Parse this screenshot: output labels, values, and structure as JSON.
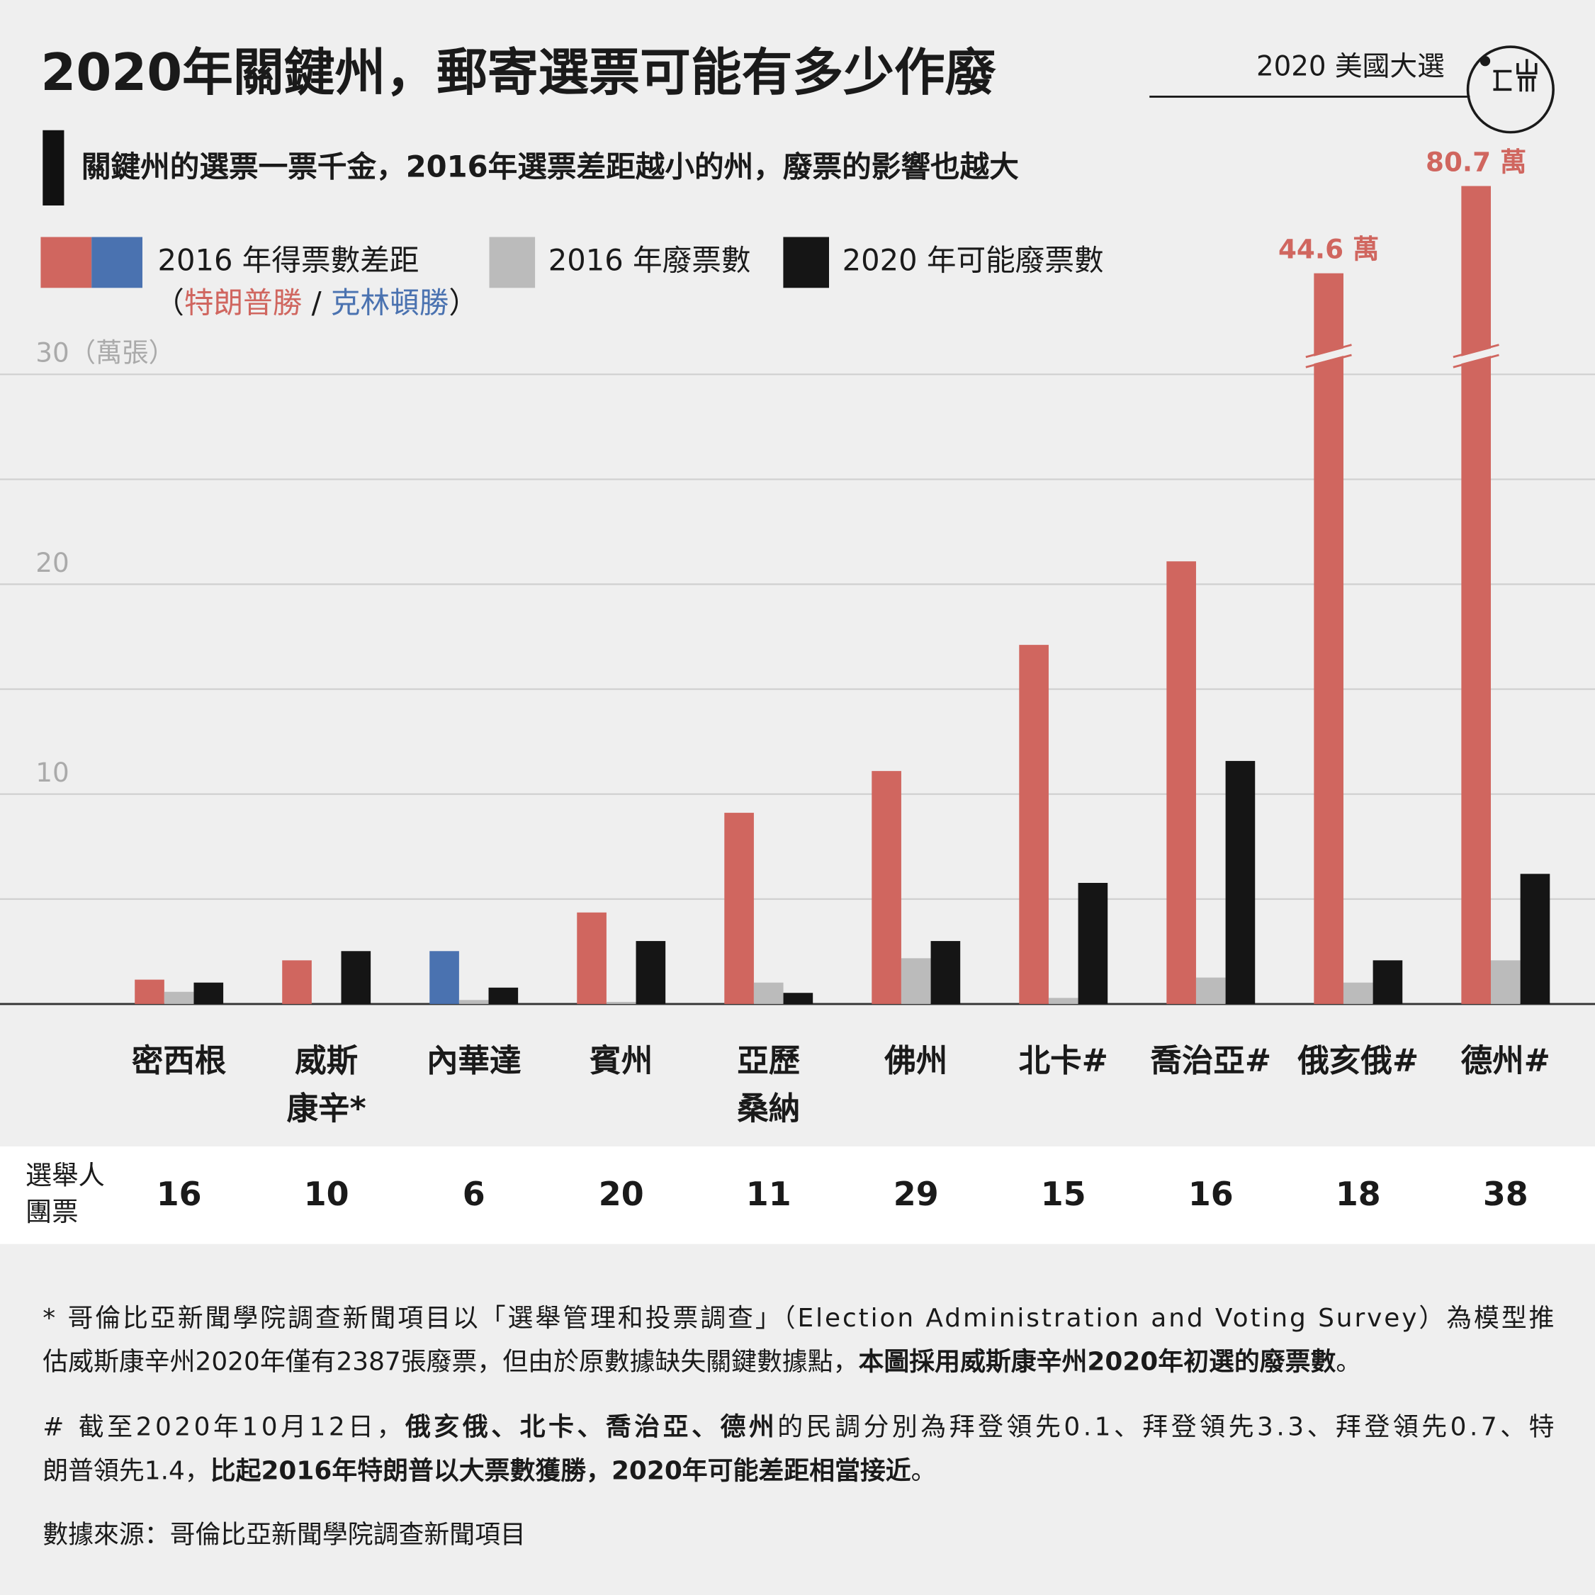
{
  "chart_data": {
    "type": "bar",
    "title": "2020年關鍵州，郵寄選票可能有多少作廢",
    "section": "2020 美國大選",
    "subtitle": "關鍵州的選票一票千金，2016年選票差距越小的州，廢票的影響也越大",
    "legend_note": [
      "（",
      "特朗普勝",
      " / ",
      "克林頓勝",
      "）"
    ],
    "y_unit": "（萬張）",
    "categories": [
      [
        "密西根"
      ],
      [
        "威斯",
        "康辛*"
      ],
      [
        "內華達"
      ],
      [
        "賓州"
      ],
      [
        "亞歷",
        "桑納"
      ],
      [
        "佛州"
      ],
      [
        "北卡#"
      ],
      [
        "喬治亞#"
      ],
      [
        "俄亥俄#"
      ],
      [
        "德州#"
      ]
    ],
    "series": [
      {
        "name": "2016 年得票數差距",
        "color": "#d0665f",
        "values": [
          1.16,
          2.08,
          2.52,
          4.36,
          9.11,
          11.1,
          17.11,
          21.09,
          44.6,
          80.7
        ],
        "point_colors": [
          "#d0665f",
          "#d0665f",
          "#4a72b0",
          "#d0665f",
          "#d0665f",
          "#d0665f",
          "#d0665f",
          "#d0665f",
          "#d0665f",
          "#d0665f"
        ],
        "value_labels": [
          null,
          null,
          null,
          null,
          null,
          null,
          null,
          null,
          "44.6 萬",
          "80.7 萬"
        ]
      },
      {
        "name": "2016 年廢票數",
        "color": "#bbbbbb",
        "values": [
          0.58,
          null,
          0.19,
          0.1,
          1.02,
          2.18,
          0.29,
          1.26,
          1.02,
          2.08
        ]
      },
      {
        "name": "2020 年可能廢票數",
        "color": "#151515",
        "values": [
          1.02,
          2.52,
          0.78,
          3.0,
          0.53,
          3.0,
          5.77,
          11.58,
          2.08,
          6.2
        ]
      }
    ],
    "ylim": [
      0,
      30
    ],
    "yticks": [
      10,
      20,
      30
    ],
    "ygrid": [
      0,
      5,
      10,
      15,
      20,
      25,
      30
    ],
    "electoral_votes_label": [
      "選舉人",
      "團票"
    ],
    "electoral_votes": [
      16,
      10,
      6,
      20,
      11,
      29,
      15,
      16,
      18,
      38
    ],
    "notes": [
      [
        [
          {
            "text": "* 哥倫比亞新聞學院調查新聞項目以「選舉管理和投票調查」（Election Administration and Voting Survey）為模型推",
            "bold": false
          }
        ],
        [
          {
            "text": "估威斯康辛州2020年僅有2387張廢票，但由於原數據缺失關鍵數據點，",
            "bold": false
          },
          {
            "text": "本圖採用威斯康辛州2020年初選的廢票數",
            "bold": true
          },
          {
            "text": "。",
            "bold": false
          }
        ]
      ],
      [
        [
          {
            "text": "# 截至2020年10月12日，",
            "bold": false
          },
          {
            "text": "俄亥俄、北卡、喬治亞、德州",
            "bold": true
          },
          {
            "text": "的民調分別為拜登領先0.1、拜登領先3.3、拜登領先0.7、特",
            "bold": false
          }
        ],
        [
          {
            "text": "朗普領先1.4，",
            "bold": false
          },
          {
            "text": "比起2016年特朗普以大票數獲勝，2020年可能差距相當接近",
            "bold": true
          },
          {
            "text": "。",
            "bold": false
          }
        ]
      ]
    ],
    "source": "數據來源：哥倫比亞新聞學院調查新聞項目"
  }
}
